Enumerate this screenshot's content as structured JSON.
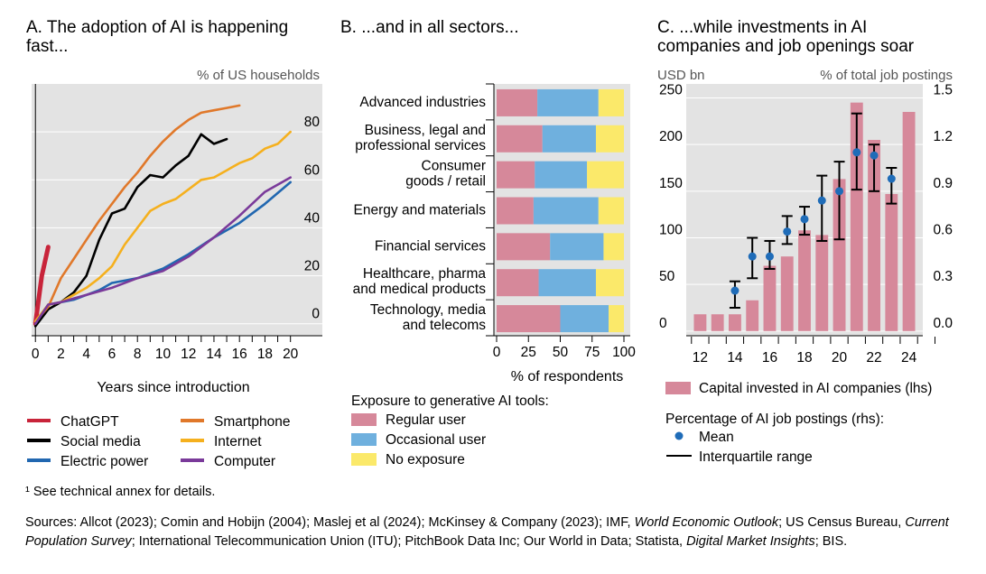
{
  "colors": {
    "panel_bg": "#e3e3e3",
    "chatgpt": "#c8243a",
    "social_media": "#000000",
    "electric_power": "#2167b0",
    "smartphone": "#e0782a",
    "internet": "#f5b01e",
    "computer": "#7a3a9a",
    "regular_user": "#d6889a",
    "occasional_user": "#6fb0de",
    "no_exposure": "#fbe96a",
    "capital_bar": "#d6889a",
    "mean_dot": "#1f6cb8"
  },
  "chart_data": [
    {
      "type": "line",
      "panel_title": "A. The adoption of AI is happening fast...",
      "title_lines": [
        "A. The adoption of AI is happening",
        "fast..."
      ],
      "unit_label": "% of US households",
      "xlabel": "Years since introduction",
      "xlim": [
        -0.3,
        22.5
      ],
      "ylim": [
        -5,
        100
      ],
      "x_ticks": [
        0,
        2,
        4,
        6,
        8,
        10,
        12,
        14,
        16,
        18,
        20
      ],
      "y_ticks": [
        0,
        20,
        40,
        60,
        80
      ],
      "series": [
        {
          "name": "ChatGPT",
          "key": "chatgpt",
          "points": [
            [
              0,
              0
            ],
            [
              0.5,
              20
            ],
            [
              1,
              32
            ]
          ]
        },
        {
          "name": "Social media",
          "key": "social_media",
          "points": [
            [
              0,
              -1
            ],
            [
              1,
              6
            ],
            [
              2,
              9
            ],
            [
              3,
              13
            ],
            [
              4,
              20
            ],
            [
              5,
              35
            ],
            [
              6,
              46
            ],
            [
              7,
              48
            ],
            [
              8,
              57
            ],
            [
              9,
              62
            ],
            [
              10,
              61
            ],
            [
              11,
              66
            ],
            [
              12,
              70
            ],
            [
              13,
              79
            ],
            [
              14,
              75
            ],
            [
              15,
              77
            ]
          ]
        },
        {
          "name": "Electric power",
          "key": "electric_power",
          "points": [
            [
              0,
              0
            ],
            [
              1,
              8
            ],
            [
              2,
              9
            ],
            [
              3,
              10
            ],
            [
              4,
              12
            ],
            [
              5,
              14
            ],
            [
              6,
              17
            ],
            [
              7,
              18
            ],
            [
              8,
              19
            ],
            [
              10,
              23
            ],
            [
              12,
              29
            ],
            [
              14,
              36
            ],
            [
              16,
              42
            ],
            [
              18,
              50
            ],
            [
              20,
              59
            ]
          ]
        },
        {
          "name": "Smartphone",
          "key": "smartphone",
          "points": [
            [
              0,
              1
            ],
            [
              1,
              7
            ],
            [
              2,
              19
            ],
            [
              3,
              27
            ],
            [
              4,
              35
            ],
            [
              5,
              43
            ],
            [
              6,
              50
            ],
            [
              7,
              57
            ],
            [
              8,
              63
            ],
            [
              9,
              70
            ],
            [
              10,
              76
            ],
            [
              11,
              81
            ],
            [
              12,
              85
            ],
            [
              13,
              88
            ],
            [
              14,
              89
            ],
            [
              15,
              90
            ],
            [
              16,
              91
            ]
          ]
        },
        {
          "name": "Internet",
          "key": "internet",
          "points": [
            [
              0,
              1
            ],
            [
              1,
              8
            ],
            [
              2,
              9
            ],
            [
              3,
              12
            ],
            [
              4,
              15
            ],
            [
              5,
              19
            ],
            [
              6,
              24
            ],
            [
              7,
              33
            ],
            [
              8,
              40
            ],
            [
              9,
              47
            ],
            [
              10,
              50
            ],
            [
              11,
              52
            ],
            [
              12,
              56
            ],
            [
              13,
              60
            ],
            [
              14,
              61
            ],
            [
              15,
              64
            ],
            [
              16,
              67
            ],
            [
              17,
              69
            ],
            [
              18,
              73
            ],
            [
              19,
              75
            ],
            [
              20,
              80
            ]
          ]
        },
        {
          "name": "Computer",
          "key": "computer",
          "points": [
            [
              0,
              0
            ],
            [
              1,
              8
            ],
            [
              2,
              9
            ],
            [
              4,
              12
            ],
            [
              6,
              15
            ],
            [
              8,
              19
            ],
            [
              10,
              22
            ],
            [
              12,
              28
            ],
            [
              14,
              36
            ],
            [
              16,
              45
            ],
            [
              18,
              55
            ],
            [
              20,
              61
            ]
          ]
        }
      ],
      "legend_order": [
        "chatgpt",
        "smartphone",
        "social_media",
        "internet",
        "electric_power",
        "computer"
      ]
    },
    {
      "type": "bar",
      "orientation": "horizontal-stacked",
      "panel_title": "B. ...and in all sectors...",
      "xlabel": "% of respondents",
      "xlim": [
        0,
        100
      ],
      "x_ticks": [
        0,
        25,
        50,
        75,
        100
      ],
      "categories": [
        [
          "Advanced industries"
        ],
        [
          "Business, legal and",
          "professional services"
        ],
        [
          "Consumer",
          "goods / retail"
        ],
        [
          "Energy and materials"
        ],
        [
          "Financial services"
        ],
        [
          "Healthcare, pharma",
          "and medical products"
        ],
        [
          "Technology, media",
          "and telecoms"
        ]
      ],
      "series": [
        {
          "name": "Regular user",
          "key": "regular_user",
          "values": [
            32,
            36,
            30,
            29,
            42,
            33,
            50
          ]
        },
        {
          "name": "Occasional user",
          "key": "occasional_user",
          "values": [
            48,
            42,
            41,
            51,
            42,
            45,
            38
          ]
        },
        {
          "name": "No exposure",
          "key": "no_exposure",
          "values": [
            20,
            22,
            29,
            20,
            16,
            22,
            12
          ]
        }
      ],
      "legend_title": "Exposure to generative AI tools:"
    },
    {
      "type": "bar",
      "panel_title": "C. ...while investments in AI companies and job openings soar",
      "title_lines": [
        "C. ...while investments in AI",
        "companies and job openings soar"
      ],
      "left_unit": "USD bn",
      "right_unit": "% of total job postings",
      "x_categories": [
        12,
        13,
        14,
        15,
        16,
        17,
        18,
        19,
        20,
        21,
        22,
        23,
        24
      ],
      "x_tick_labels": [
        12,
        14,
        16,
        18,
        20,
        22,
        24
      ],
      "xlim": [
        11.2,
        24.8
      ],
      "ylim_left": [
        -5,
        265
      ],
      "ylim_right": [
        -0.03,
        1.59
      ],
      "y_ticks_left": [
        0,
        50,
        100,
        150,
        200,
        250
      ],
      "y_ticks_right": [
        "0.0",
        "0.3",
        "0.6",
        "0.9",
        "1.2",
        "1.5"
      ],
      "series": [
        {
          "name": "Capital invested in AI companies (lhs)",
          "key": "capital_bar",
          "axis": "left",
          "x": [
            12,
            13,
            14,
            15,
            16,
            17,
            18,
            19,
            20,
            21,
            22,
            23,
            24
          ],
          "values": [
            18,
            18,
            18,
            33,
            70,
            80,
            108,
            103,
            163,
            245,
            205,
            147,
            235
          ]
        },
        {
          "name": "Mean",
          "key": "mean_dot",
          "axis": "right",
          "x": [
            14,
            15,
            16,
            17,
            18,
            19,
            20,
            21,
            22,
            23
          ],
          "values": [
            0.26,
            0.48,
            0.48,
            0.64,
            0.72,
            0.84,
            0.9,
            1.15,
            1.13,
            0.98
          ],
          "iqr": [
            [
              0.15,
              0.32
            ],
            [
              0.34,
              0.6
            ],
            [
              0.4,
              0.58
            ],
            [
              0.56,
              0.74
            ],
            [
              0.62,
              0.8
            ],
            [
              0.58,
              1.0
            ],
            [
              0.59,
              1.09
            ],
            [
              0.91,
              1.4
            ],
            [
              0.9,
              1.2
            ],
            [
              0.82,
              1.05
            ]
          ]
        }
      ],
      "legend": {
        "bar_label": "Capital invested in AI companies (lhs)",
        "group_title": "Percentage of AI job postings (rhs):",
        "mean_label": "Mean",
        "iqr_label": "Interquartile range"
      }
    }
  ],
  "footnote": "¹  See technical annex for details.",
  "sources_segments": [
    {
      "t": "Sources: Allcot (2023); Comin and Hobijn (2004); Maslej et al (2024); McKinsey & Company (2023); IMF, "
    },
    {
      "t": "World Economic Outlook",
      "i": true
    },
    {
      "t": "; US Census Bureau, "
    },
    {
      "t": "Current Population Survey",
      "i": true
    },
    {
      "t": "; International Telecommunication Union (ITU); PitchBook Data Inc; Our World in Data; Statista, "
    },
    {
      "t": "Digital Market Insights",
      "i": true
    },
    {
      "t": "; BIS."
    }
  ]
}
